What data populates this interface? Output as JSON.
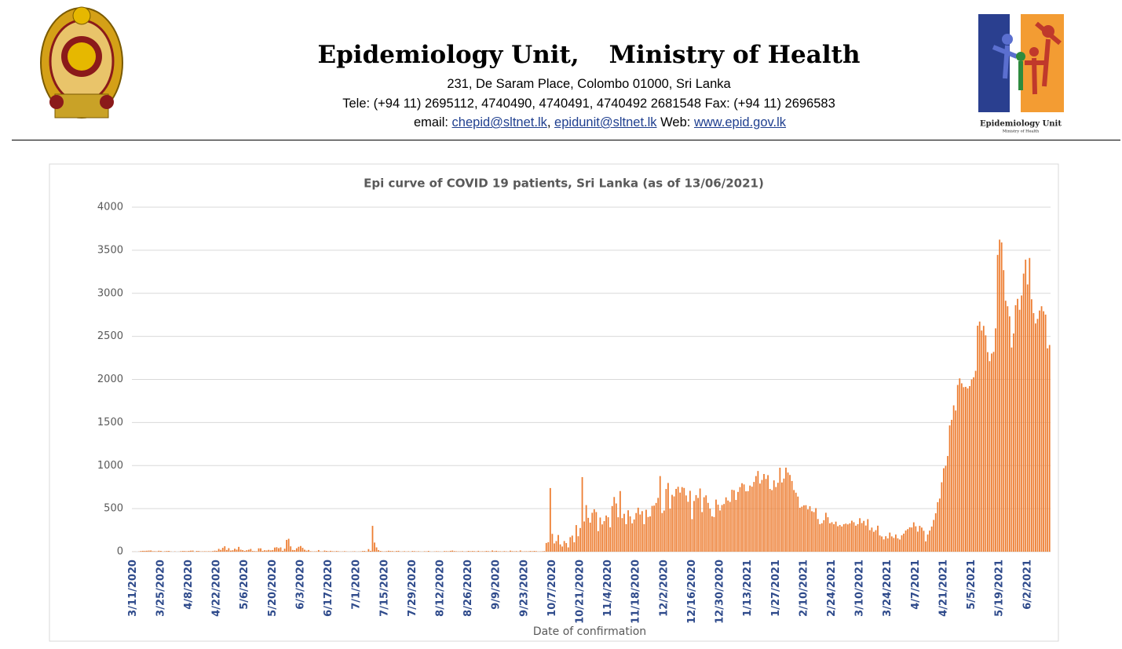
{
  "header": {
    "title_left": "Epidemiology Unit,",
    "title_right": "Ministry of Health",
    "address": "231, De Saram Place, Colombo 01000, Sri Lanka",
    "tele": "Tele: (+94 11) 2695112, 4740490, 4740491, 4740492 2681548  Fax: (+94 11) 2696583",
    "email_prefix": "email:",
    "emails": [
      "chepid@sltnet.lk",
      "epidunit@sltnet.lk"
    ],
    "separator": ",",
    "web_prefix": "Web:",
    "web": "www.epid.gov.lk",
    "logo_title": "Epidemiology Unit",
    "logo_subtitle": "Ministry of Health"
  },
  "chart_data": {
    "type": "bar",
    "title": "Epi curve of COVID 19 patients, Sri Lanka  (as of 13/06/2021)",
    "x_label": "Date of confirmation",
    "color": "#ed7d31",
    "grid": true,
    "ylim": [
      0,
      4000
    ],
    "yticks": [
      0,
      500,
      1000,
      1500,
      2000,
      2500,
      3000,
      3500,
      4000
    ],
    "categories": [
      "3/11/2020",
      null,
      null,
      null,
      null,
      null,
      null,
      null,
      null,
      null,
      null,
      null,
      null,
      null,
      "3/25/2020",
      null,
      null,
      null,
      null,
      null,
      null,
      null,
      null,
      null,
      null,
      null,
      null,
      null,
      "4/8/2020",
      null,
      null,
      null,
      null,
      null,
      null,
      null,
      null,
      null,
      null,
      null,
      null,
      null,
      "4/22/2020",
      null,
      null,
      null,
      null,
      null,
      null,
      null,
      null,
      null,
      null,
      null,
      null,
      null,
      "5/6/2020",
      null,
      null,
      null,
      null,
      null,
      null,
      null,
      null,
      null,
      null,
      null,
      null,
      null,
      "5/20/2020",
      null,
      null,
      null,
      null,
      null,
      null,
      null,
      null,
      null,
      null,
      null,
      null,
      null,
      "6/3/2020",
      null,
      null,
      null,
      null,
      null,
      null,
      null,
      null,
      null,
      null,
      null,
      null,
      null,
      "6/17/2020",
      null,
      null,
      null,
      null,
      null,
      null,
      null,
      null,
      null,
      null,
      null,
      null,
      null,
      "7/1/2020",
      null,
      null,
      null,
      null,
      null,
      null,
      null,
      null,
      null,
      null,
      null,
      null,
      null,
      "7/15/2020",
      null,
      null,
      null,
      null,
      null,
      null,
      null,
      null,
      null,
      null,
      null,
      null,
      null,
      "7/29/2020",
      null,
      null,
      null,
      null,
      null,
      null,
      null,
      null,
      null,
      null,
      null,
      null,
      null,
      "8/12/2020",
      null,
      null,
      null,
      null,
      null,
      null,
      null,
      null,
      null,
      null,
      null,
      null,
      null,
      "8/26/2020",
      null,
      null,
      null,
      null,
      null,
      null,
      null,
      null,
      null,
      null,
      null,
      null,
      null,
      "9/9/2020",
      null,
      null,
      null,
      null,
      null,
      null,
      null,
      null,
      null,
      null,
      null,
      null,
      null,
      "9/23/2020",
      null,
      null,
      null,
      null,
      null,
      null,
      null,
      null,
      null,
      null,
      null,
      null,
      null,
      "10/7/2020",
      null,
      null,
      null,
      null,
      null,
      null,
      null,
      null,
      null,
      null,
      null,
      null,
      null,
      "10/21/2020",
      null,
      null,
      null,
      null,
      null,
      null,
      null,
      null,
      null,
      null,
      null,
      null,
      null,
      "11/4/2020",
      null,
      null,
      null,
      null,
      null,
      null,
      null,
      null,
      null,
      null,
      null,
      null,
      null,
      "11/18/2020",
      null,
      null,
      null,
      null,
      null,
      null,
      null,
      null,
      null,
      null,
      null,
      null,
      null,
      "12/2/2020",
      null,
      null,
      null,
      null,
      null,
      null,
      null,
      null,
      null,
      null,
      null,
      null,
      null,
      "12/16/2020",
      null,
      null,
      null,
      null,
      null,
      null,
      null,
      null,
      null,
      null,
      null,
      null,
      null,
      "12/30/2020",
      null,
      null,
      null,
      null,
      null,
      null,
      null,
      null,
      null,
      null,
      null,
      null,
      null,
      "1/13/2021",
      null,
      null,
      null,
      null,
      null,
      null,
      null,
      null,
      null,
      null,
      null,
      null,
      null,
      "1/27/2021",
      null,
      null,
      null,
      null,
      null,
      null,
      null,
      null,
      null,
      null,
      null,
      null,
      null,
      "2/10/2021",
      null,
      null,
      null,
      null,
      null,
      null,
      null,
      null,
      null,
      null,
      null,
      null,
      null,
      "2/24/2021",
      null,
      null,
      null,
      null,
      null,
      null,
      null,
      null,
      null,
      null,
      null,
      null,
      null,
      "3/10/2021",
      null,
      null,
      null,
      null,
      null,
      null,
      null,
      null,
      null,
      null,
      null,
      null,
      null,
      "3/24/2021",
      null,
      null,
      null,
      null,
      null,
      null,
      null,
      null,
      null,
      null,
      null,
      null,
      null,
      "4/7/2021",
      null,
      null,
      null,
      null,
      null,
      null,
      null,
      null,
      null,
      null,
      null,
      null,
      null,
      "4/21/2021",
      null,
      null,
      null,
      null,
      null,
      null,
      null,
      null,
      null,
      null,
      null,
      null,
      null,
      "5/5/2021",
      null,
      null,
      null,
      null,
      null,
      null,
      null,
      null,
      null,
      null,
      null,
      null,
      null,
      "5/19/2021",
      null,
      null,
      null,
      null,
      null,
      null,
      null,
      null,
      null,
      null,
      null,
      null,
      null,
      "6/2/2021",
      null,
      null,
      null,
      null,
      null,
      null,
      null,
      null,
      null,
      null,
      null
    ],
    "values": [
      1,
      1,
      0,
      2,
      8,
      10,
      10,
      11,
      13,
      14,
      6,
      6,
      4,
      11,
      9,
      2,
      5,
      8,
      9,
      3,
      0,
      3,
      0,
      1,
      6,
      8,
      8,
      5,
      9,
      12,
      13,
      0,
      9,
      8,
      3,
      4,
      5,
      4,
      5,
      4,
      7,
      12,
      10,
      33,
      21,
      45,
      63,
      20,
      41,
      13,
      17,
      35,
      24,
      56,
      24,
      18,
      10,
      17,
      23,
      32,
      8,
      7,
      5,
      39,
      39,
      10,
      17,
      14,
      21,
      15,
      19,
      48,
      52,
      41,
      50,
      10,
      35,
      137,
      150,
      62,
      20,
      18,
      40,
      57,
      66,
      45,
      23,
      12,
      20,
      6,
      3,
      4,
      5,
      19,
      4,
      3,
      13,
      9,
      5,
      10,
      6,
      4,
      8,
      5,
      2,
      3,
      6,
      3,
      1,
      2,
      3,
      5,
      1,
      2,
      3,
      8,
      9,
      3,
      30,
      10,
      300,
      106,
      50,
      18,
      9,
      4,
      3,
      6,
      11,
      8,
      7,
      3,
      8,
      10,
      2,
      3,
      6,
      2,
      5,
      1,
      8,
      6,
      3,
      5,
      2,
      1,
      5,
      3,
      9,
      2,
      1,
      3,
      5,
      4,
      2,
      1,
      7,
      6,
      4,
      10,
      13,
      7,
      5,
      3,
      4,
      6,
      2,
      3,
      9,
      5,
      8,
      6,
      3,
      10,
      3,
      5,
      4,
      9,
      6,
      3,
      14,
      6,
      10,
      5,
      5,
      3,
      7,
      4,
      2,
      12,
      6,
      4,
      7,
      2,
      14,
      3,
      4,
      5,
      4,
      8,
      5,
      9,
      6,
      2,
      3,
      5,
      7,
      101,
      111,
      739,
      207,
      96,
      124,
      194,
      85,
      60,
      124,
      100,
      50,
      169,
      187,
      109,
      309,
      180,
      275,
      866,
      351,
      541,
      393,
      337,
      452,
      493,
      460,
      239,
      397,
      317,
      355,
      420,
      400,
      283,
      530,
      635,
      560,
      400,
      704,
      390,
      440,
      320,
      481,
      410,
      329,
      374,
      449,
      511,
      432,
      471,
      320,
      487,
      403,
      410,
      532,
      535,
      566,
      625,
      878,
      449,
      478,
      728,
      798,
      500,
      660,
      642,
      729,
      754,
      686,
      750,
      740,
      653,
      580,
      707,
      378,
      589,
      657,
      624,
      734,
      460,
      632,
      654,
      567,
      500,
      411,
      403,
      605,
      546,
      479,
      542,
      554,
      631,
      594,
      578,
      719,
      714,
      601,
      694,
      750,
      795,
      781,
      701,
      703,
      768,
      755,
      810,
      878,
      937,
      791,
      833,
      902,
      845,
      889,
      729,
      715,
      828,
      751,
      800,
      975,
      804,
      849,
      976,
      919,
      891,
      821,
      716,
      685,
      640,
      510,
      523,
      538,
      540,
      491,
      528,
      470,
      460,
      506,
      380,
      320,
      330,
      366,
      452,
      400,
      330,
      342,
      319,
      349,
      296,
      310,
      293,
      319,
      326,
      317,
      329,
      360,
      342,
      302,
      320,
      389,
      333,
      358,
      304,
      378,
      250,
      280,
      231,
      250,
      302,
      189,
      177,
      143,
      180,
      154,
      222,
      178,
      160,
      199,
      155,
      141,
      190,
      210,
      246,
      262,
      283,
      281,
      341,
      295,
      233,
      300,
      280,
      243,
      120,
      199,
      245,
      292,
      369,
      446,
      575,
      617,
      806,
      969,
      997,
      1111,
      1466,
      1531,
      1699,
      1639,
      1936,
      2012,
      1955,
      1910,
      1914,
      1896,
      1923,
      2000,
      2025,
      2100,
      2624,
      2672,
      2568,
      2622,
      2512,
      2317,
      2212,
      2301,
      2320,
      2593,
      3446,
      3623,
      3591,
      3269,
      2914,
      2850,
      2732,
      2371,
      2534,
      2862,
      2936,
      2809,
      2975,
      3229,
      3391,
      3103,
      3410,
      2931,
      2770,
      2650,
      2703,
      2800,
      2850,
      2792,
      2753,
      2361,
      2400
    ]
  }
}
